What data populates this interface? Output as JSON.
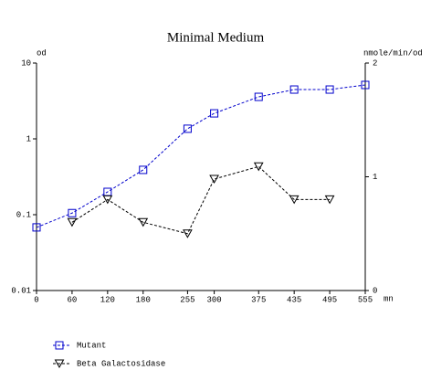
{
  "chart_data": {
    "type": "line",
    "title": "Minimal Medium",
    "y_label": "od",
    "y2_label": "nmole/min/od",
    "x_label": "mn",
    "x": [
      0,
      60,
      120,
      180,
      255,
      300,
      375,
      435,
      495,
      555
    ],
    "xlim": [
      0,
      555
    ],
    "xticks": [
      0,
      60,
      120,
      180,
      255,
      300,
      375,
      435,
      495,
      555
    ],
    "ylim": [
      0.01,
      10
    ],
    "yticks": [
      0.01,
      0.1,
      1,
      10
    ],
    "y_log": true,
    "y2lim": [
      0,
      2
    ],
    "y2ticks": [
      0,
      1,
      2
    ],
    "grid": false,
    "legend": "bottom",
    "series": [
      {
        "name": "Mutant",
        "color": "#0000cc",
        "marker": "square",
        "values": [
          0.068,
          0.105,
          0.2,
          0.39,
          1.36,
          2.17,
          3.58,
          4.47,
          4.47,
          5.14
        ]
      },
      {
        "name": "Beta Galactosidase",
        "color": "#000000",
        "marker": "triangle",
        "axis": "y2",
        "values": [
          null,
          0.6,
          0.8,
          0.6,
          0.5,
          0.98,
          1.09,
          0.8,
          0.8,
          null
        ]
      }
    ]
  }
}
